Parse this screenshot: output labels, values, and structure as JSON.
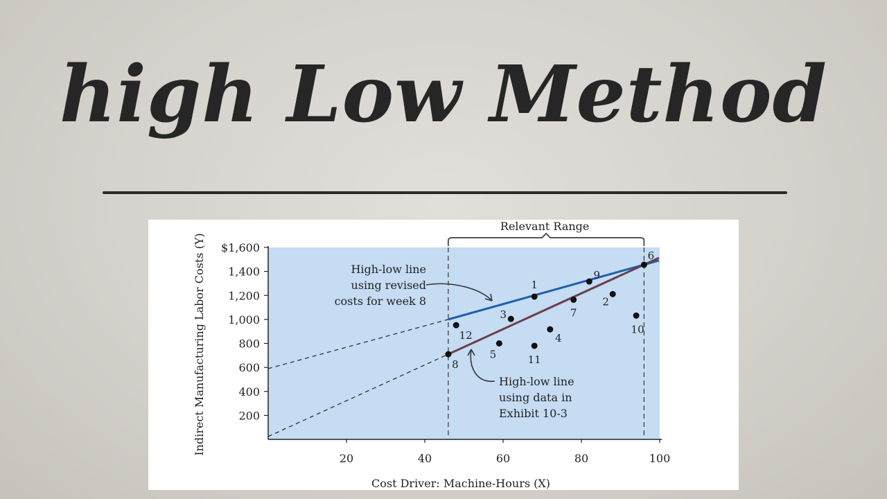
{
  "title": "high Low Method",
  "chart_data": {
    "type": "scatter",
    "xlabel": "Cost Driver: Machine-Hours (X)",
    "ylabel": "Indirect Manufacturing Labor Costs (Y)",
    "xlim": [
      0,
      100
    ],
    "ylim": [
      0,
      1600
    ],
    "x_ticks": [
      "20",
      "40",
      "60",
      "80",
      "100"
    ],
    "y_ticks": [
      "$1,600",
      "1,400",
      "1,200",
      "1,000",
      "800",
      "600",
      "400",
      "200"
    ],
    "points": [
      {
        "label": "1",
        "x": 68,
        "y": 1190
      },
      {
        "label": "2",
        "x": 88,
        "y": 1211
      },
      {
        "label": "3",
        "x": 62,
        "y": 1004
      },
      {
        "label": "4",
        "x": 72,
        "y": 917
      },
      {
        "label": "5",
        "x": 59,
        "y": 800
      },
      {
        "label": "6",
        "x": 96,
        "y": 1456
      },
      {
        "label": "7",
        "x": 78,
        "y": 1164
      },
      {
        "label": "8",
        "x": 46,
        "y": 710
      },
      {
        "label": "9",
        "x": 82,
        "y": 1316
      },
      {
        "label": "10",
        "x": 94,
        "y": 1032
      },
      {
        "label": "11",
        "x": 68,
        "y": 780
      },
      {
        "label": "12",
        "x": 48,
        "y": 952
      }
    ],
    "lines": [
      {
        "x": [
          46,
          96
        ],
        "y": [
          1000,
          1456
        ],
        "color": "#1f5fa8"
      },
      {
        "x": [
          46,
          96
        ],
        "y": [
          710,
          1456
        ],
        "color": "#6a3e4d"
      }
    ],
    "extrapolations": [
      {
        "x": [
          0,
          46
        ],
        "y": [
          590,
          1000
        ]
      },
      {
        "x": [
          0,
          46
        ],
        "y": [
          24,
          710
        ]
      }
    ],
    "relevant_range": {
      "label": "Relevant Range",
      "x": [
        46,
        96
      ]
    },
    "annotations": [
      {
        "lines": [
          "High-low line",
          "using revised",
          "costs for week 8"
        ]
      },
      {
        "lines": [
          "High-low line",
          "using data in",
          "Exhibit 10-3"
        ]
      }
    ],
    "colors": {
      "plot_bg": "#c5dcf3",
      "revised_line": "#1f5fa8",
      "original_line": "#6a3e4d"
    }
  }
}
